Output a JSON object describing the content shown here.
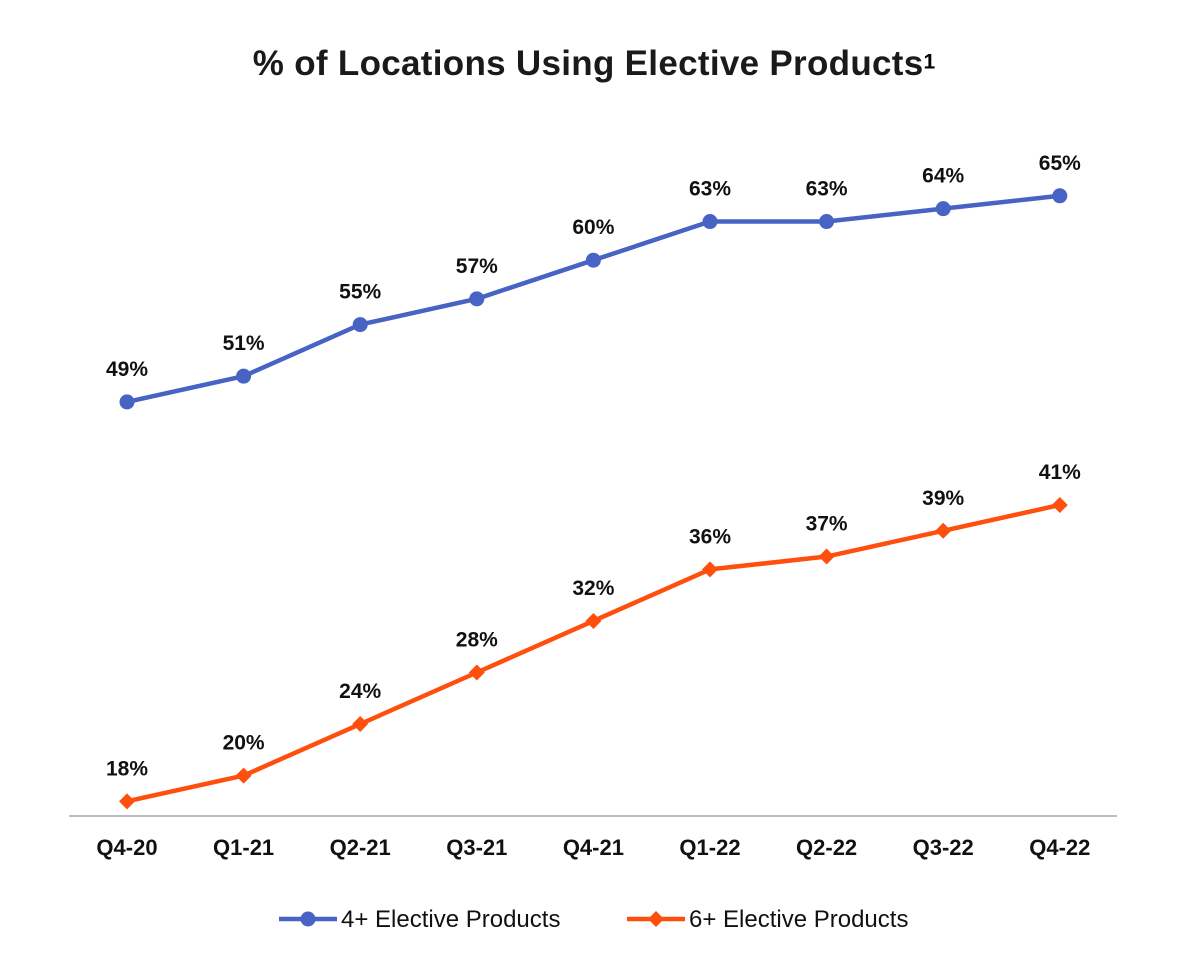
{
  "chart_data": {
    "type": "line",
    "title": "% of Locations Using Elective Products",
    "title_superscript": "1",
    "xlabel": "",
    "ylabel": "",
    "categories": [
      "Q4-20",
      "Q1-21",
      "Q2-21",
      "Q3-21",
      "Q4-21",
      "Q1-22",
      "Q2-22",
      "Q3-22",
      "Q4-22"
    ],
    "series": [
      {
        "name": "4+ Elective Products",
        "color": "#4763C4",
        "marker": "circle",
        "values": [
          49,
          51,
          55,
          57,
          60,
          63,
          63,
          64,
          65
        ],
        "labels": [
          "49%",
          "51%",
          "55%",
          "57%",
          "60%",
          "63%",
          "63%",
          "64%",
          "65%"
        ]
      },
      {
        "name": "6+ Elective Products",
        "color": "#FF4F0E",
        "marker": "diamond",
        "values": [
          18,
          20,
          24,
          28,
          32,
          36,
          37,
          39,
          41
        ],
        "labels": [
          "18%",
          "20%",
          "24%",
          "28%",
          "32%",
          "36%",
          "37%",
          "39%",
          "41%"
        ]
      }
    ],
    "ylim": [
      15,
      67
    ],
    "grid": false,
    "y_axis_visible": false,
    "axis_color": "#A6A6A6",
    "legend": "bottom"
  }
}
